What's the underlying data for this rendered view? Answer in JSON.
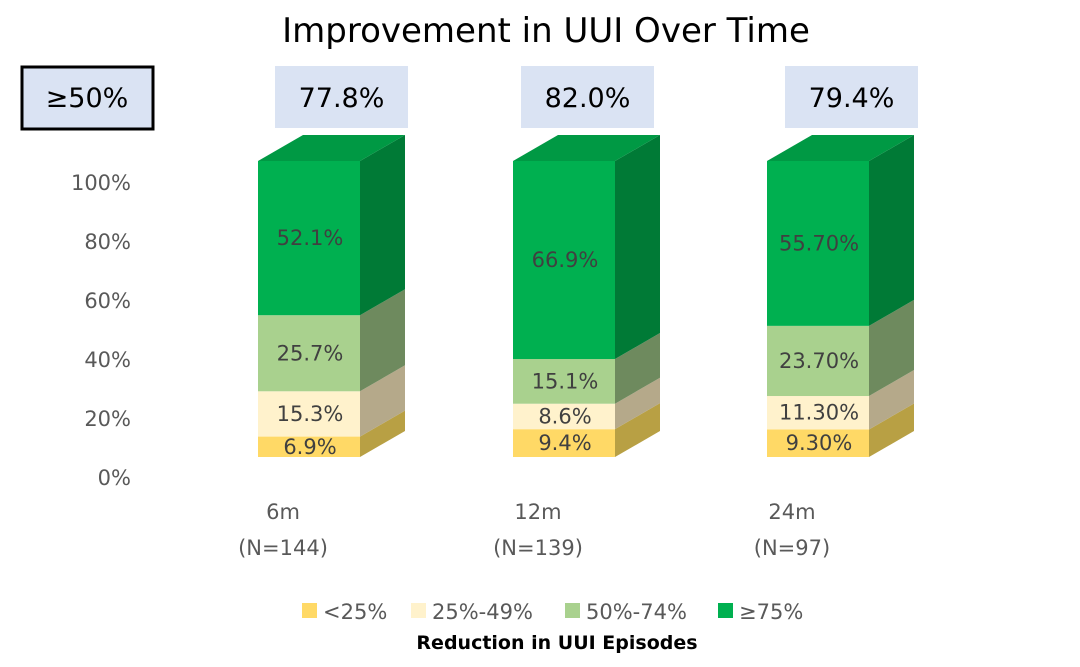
{
  "chart_data": {
    "type": "bar",
    "stacked": true,
    "title": "Improvement in UUI Over Time",
    "yaxis": {
      "ticks": [
        "0%",
        "20%",
        "40%",
        "60%",
        "80%",
        "100%"
      ],
      "ylim": [
        0,
        100
      ]
    },
    "categories": [
      {
        "name": "6m",
        "n": "(N=144)"
      },
      {
        "name": "12m",
        "n": "(N=139)"
      },
      {
        "name": "24m",
        "n": "(N=97)"
      }
    ],
    "series": [
      {
        "name": "<25%",
        "color": "#FFD966",
        "sideColor": "#B8A044",
        "topColor": "#E3C458",
        "values": [
          6.9,
          9.4,
          9.3
        ],
        "labels": [
          "6.9%",
          "9.4%",
          "9.30%"
        ]
      },
      {
        "name": "25%-49%",
        "color": "#FFF2CC",
        "sideColor": "#B5A98A",
        "topColor": "#E3D9B5",
        "values": [
          15.3,
          8.6,
          11.3
        ],
        "labels": [
          "15.3%",
          "8.6%",
          "11.30%"
        ]
      },
      {
        "name": "50%-74%",
        "color": "#A9D18E",
        "sideColor": "#6E8A5E",
        "topColor": "#8FB479",
        "values": [
          25.7,
          15.1,
          23.7
        ],
        "labels": [
          "25.7%",
          "15.1%",
          "23.70%"
        ]
      },
      {
        "name": "≥75%",
        "color": "#00B050",
        "sideColor": "#007A36",
        "topColor": "#009944",
        "values": [
          52.1,
          66.9,
          55.7
        ],
        "labels": [
          "52.1%",
          "66.9%",
          "55.70%"
        ]
      }
    ],
    "summary_header": {
      "label": "≥50%"
    },
    "summary_values": [
      "77.8%",
      "82.0%",
      "79.4%"
    ],
    "box_fill": "#DAE3F3",
    "legend": {
      "position": "bottom",
      "title": "Reduction in UUI Episodes"
    },
    "grid": false
  }
}
